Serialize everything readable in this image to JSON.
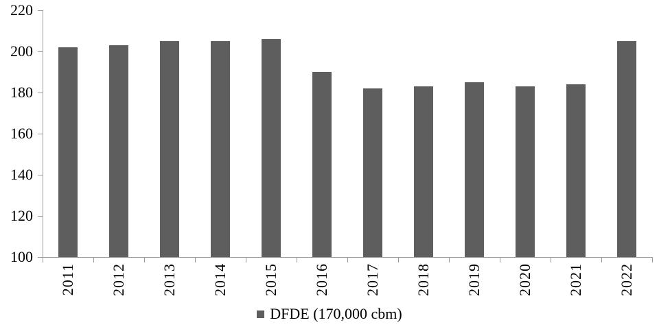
{
  "chart_data": {
    "type": "bar",
    "title": "",
    "xlabel": "",
    "ylabel": "",
    "categories": [
      "2011",
      "2012",
      "2013",
      "2014",
      "2015",
      "2016",
      "2017",
      "2018",
      "2019",
      "2020",
      "2021",
      "2022"
    ],
    "values": [
      202,
      203,
      205,
      205,
      206,
      190,
      182,
      183,
      185,
      183,
      184,
      205
    ],
    "series_name": "DFDE (170,000 cbm)",
    "ylim": [
      100,
      220
    ],
    "yticks": [
      100,
      120,
      140,
      160,
      180,
      200,
      220
    ],
    "grid": false,
    "legend_position": "bottom-center",
    "colors": {
      "bar": "#5e5e5e",
      "legend_marker": "#5e5e5e",
      "axis": "#9a9a9a",
      "text": "#000000",
      "background": "#ffffff"
    }
  }
}
